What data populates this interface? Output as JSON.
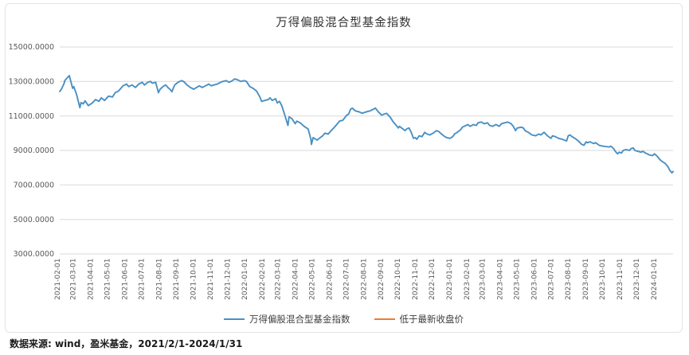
{
  "footer": {
    "text": "数据来源: wind，盈米基金，2021/2/1-2024/1/31"
  },
  "chart_data": {
    "type": "line",
    "title": "万得偏股混合型基金指数",
    "xlabel": "",
    "ylabel": "",
    "ylim": [
      3000,
      15000
    ],
    "yticks": [
      3000,
      5000,
      7000,
      9000,
      11000,
      13000,
      15000
    ],
    "ytick_decimals": 4,
    "grid": "horizontal",
    "legend_position": "bottom",
    "x_range": [
      "2021-02-01",
      "2024-01-31"
    ],
    "xtick_labels": [
      "2021-02-01",
      "2021-03-01",
      "2021-04-01",
      "2021-05-01",
      "2021-06-01",
      "2021-07-01",
      "2021-08-01",
      "2021-09-01",
      "2021-10-01",
      "2021-11-01",
      "2021-12-01",
      "2022-01-01",
      "2022-02-01",
      "2022-03-01",
      "2022-04-01",
      "2022-05-01",
      "2022-06-01",
      "2022-07-01",
      "2022-08-01",
      "2022-09-01",
      "2022-10-01",
      "2022-11-01",
      "2022-12-01",
      "2023-01-01",
      "2023-02-01",
      "2023-03-01",
      "2023-04-01",
      "2023-05-01",
      "2023-06-01",
      "2023-07-01",
      "2023-08-01",
      "2023-09-01",
      "2023-10-01",
      "2023-11-01",
      "2023-12-01",
      "2024-01-01"
    ],
    "series": [
      {
        "name": "万得偏股混合型基金指数",
        "color": "#4a90c4",
        "points": [
          [
            "2021-02-01",
            12420
          ],
          [
            "2021-02-04",
            12550
          ],
          [
            "2021-02-09",
            12900
          ],
          [
            "2021-02-10",
            13050
          ],
          [
            "2021-02-18",
            13340
          ],
          [
            "2021-02-22",
            12850
          ],
          [
            "2021-02-24",
            12600
          ],
          [
            "2021-02-26",
            12700
          ],
          [
            "2021-03-03",
            12250
          ],
          [
            "2021-03-09",
            11480
          ],
          [
            "2021-03-11",
            11780
          ],
          [
            "2021-03-15",
            11700
          ],
          [
            "2021-03-18",
            11880
          ],
          [
            "2021-03-24",
            11600
          ],
          [
            "2021-03-31",
            11750
          ],
          [
            "2021-04-06",
            11950
          ],
          [
            "2021-04-12",
            11850
          ],
          [
            "2021-04-16",
            12050
          ],
          [
            "2021-04-22",
            11900
          ],
          [
            "2021-04-29",
            12150
          ],
          [
            "2021-05-06",
            12100
          ],
          [
            "2021-05-11",
            12350
          ],
          [
            "2021-05-17",
            12450
          ],
          [
            "2021-05-21",
            12600
          ],
          [
            "2021-05-25",
            12750
          ],
          [
            "2021-05-31",
            12850
          ],
          [
            "2021-06-04",
            12700
          ],
          [
            "2021-06-10",
            12800
          ],
          [
            "2021-06-16",
            12650
          ],
          [
            "2021-06-22",
            12850
          ],
          [
            "2021-06-28",
            12950
          ],
          [
            "2021-07-02",
            12800
          ],
          [
            "2021-07-08",
            12950
          ],
          [
            "2021-07-13",
            13000
          ],
          [
            "2021-07-16",
            12900
          ],
          [
            "2021-07-22",
            12950
          ],
          [
            "2021-07-27",
            12350
          ],
          [
            "2021-07-30",
            12550
          ],
          [
            "2021-08-04",
            12700
          ],
          [
            "2021-08-09",
            12800
          ],
          [
            "2021-08-13",
            12650
          ],
          [
            "2021-08-18",
            12500
          ],
          [
            "2021-08-20",
            12400
          ],
          [
            "2021-08-25",
            12800
          ],
          [
            "2021-08-31",
            12950
          ],
          [
            "2021-09-06",
            13050
          ],
          [
            "2021-09-10",
            13000
          ],
          [
            "2021-09-16",
            12800
          ],
          [
            "2021-09-22",
            12650
          ],
          [
            "2021-09-28",
            12550
          ],
          [
            "2021-10-08",
            12750
          ],
          [
            "2021-10-13",
            12650
          ],
          [
            "2021-10-19",
            12750
          ],
          [
            "2021-10-25",
            12850
          ],
          [
            "2021-10-29",
            12750
          ],
          [
            "2021-11-03",
            12800
          ],
          [
            "2021-11-09",
            12850
          ],
          [
            "2021-11-15",
            12950
          ],
          [
            "2021-11-19",
            13000
          ],
          [
            "2021-11-25",
            13050
          ],
          [
            "2021-11-30",
            12950
          ],
          [
            "2021-12-06",
            13050
          ],
          [
            "2021-12-10",
            13150
          ],
          [
            "2021-12-15",
            13100
          ],
          [
            "2021-12-21",
            13000
          ],
          [
            "2021-12-27",
            13050
          ],
          [
            "2021-12-31",
            13000
          ],
          [
            "2022-01-06",
            12700
          ],
          [
            "2022-01-12",
            12600
          ],
          [
            "2022-01-18",
            12450
          ],
          [
            "2022-01-24",
            12100
          ],
          [
            "2022-01-27",
            11850
          ],
          [
            "2022-02-08",
            11950
          ],
          [
            "2022-02-11",
            12050
          ],
          [
            "2022-02-15",
            11900
          ],
          [
            "2022-02-21",
            12000
          ],
          [
            "2022-02-24",
            11750
          ],
          [
            "2022-02-28",
            11850
          ],
          [
            "2022-03-04",
            11600
          ],
          [
            "2022-03-09",
            11100
          ],
          [
            "2022-03-15",
            10450
          ],
          [
            "2022-03-17",
            10950
          ],
          [
            "2022-03-22",
            10850
          ],
          [
            "2022-03-28",
            10550
          ],
          [
            "2022-03-31",
            10700
          ],
          [
            "2022-04-06",
            10600
          ],
          [
            "2022-04-11",
            10450
          ],
          [
            "2022-04-15",
            10350
          ],
          [
            "2022-04-20",
            10250
          ],
          [
            "2022-04-25",
            9650
          ],
          [
            "2022-04-26",
            9350
          ],
          [
            "2022-04-29",
            9750
          ],
          [
            "2022-05-06",
            9600
          ],
          [
            "2022-05-10",
            9700
          ],
          [
            "2022-05-16",
            9850
          ],
          [
            "2022-05-20",
            10000
          ],
          [
            "2022-05-26",
            9950
          ],
          [
            "2022-05-31",
            10150
          ],
          [
            "2022-06-06",
            10350
          ],
          [
            "2022-06-10",
            10500
          ],
          [
            "2022-06-15",
            10700
          ],
          [
            "2022-06-21",
            10750
          ],
          [
            "2022-06-28",
            11050
          ],
          [
            "2022-07-01",
            11100
          ],
          [
            "2022-07-05",
            11400
          ],
          [
            "2022-07-08",
            11450
          ],
          [
            "2022-07-13",
            11300
          ],
          [
            "2022-07-19",
            11250
          ],
          [
            "2022-07-26",
            11150
          ],
          [
            "2022-07-29",
            11200
          ],
          [
            "2022-08-03",
            11250
          ],
          [
            "2022-08-09",
            11300
          ],
          [
            "2022-08-15",
            11400
          ],
          [
            "2022-08-18",
            11450
          ],
          [
            "2022-08-23",
            11250
          ],
          [
            "2022-08-29",
            11050
          ],
          [
            "2022-09-02",
            11100
          ],
          [
            "2022-09-07",
            11150
          ],
          [
            "2022-09-13",
            10950
          ],
          [
            "2022-09-19",
            10650
          ],
          [
            "2022-09-23",
            10500
          ],
          [
            "2022-09-28",
            10300
          ],
          [
            "2022-09-30",
            10400
          ],
          [
            "2022-10-10",
            10150
          ],
          [
            "2022-10-13",
            10250
          ],
          [
            "2022-10-17",
            10300
          ],
          [
            "2022-10-21",
            10050
          ],
          [
            "2022-10-25",
            9700
          ],
          [
            "2022-10-28",
            9750
          ],
          [
            "2022-10-31",
            9650
          ],
          [
            "2022-11-04",
            9850
          ],
          [
            "2022-11-09",
            9800
          ],
          [
            "2022-11-14",
            10050
          ],
          [
            "2022-11-18",
            9950
          ],
          [
            "2022-11-23",
            9900
          ],
          [
            "2022-11-29",
            10000
          ],
          [
            "2022-12-05",
            10150
          ],
          [
            "2022-12-09",
            10100
          ],
          [
            "2022-12-14",
            9950
          ],
          [
            "2022-12-20",
            9800
          ],
          [
            "2022-12-23",
            9750
          ],
          [
            "2022-12-29",
            9700
          ],
          [
            "2023-01-03",
            9800
          ],
          [
            "2023-01-06",
            9950
          ],
          [
            "2023-01-11",
            10050
          ],
          [
            "2023-01-17",
            10200
          ],
          [
            "2023-01-20",
            10350
          ],
          [
            "2023-01-30",
            10500
          ],
          [
            "2023-02-03",
            10400
          ],
          [
            "2023-02-09",
            10500
          ],
          [
            "2023-02-14",
            10450
          ],
          [
            "2023-02-17",
            10600
          ],
          [
            "2023-02-23",
            10650
          ],
          [
            "2023-02-28",
            10550
          ],
          [
            "2023-03-06",
            10600
          ],
          [
            "2023-03-10",
            10450
          ],
          [
            "2023-03-15",
            10400
          ],
          [
            "2023-03-21",
            10500
          ],
          [
            "2023-03-27",
            10400
          ],
          [
            "2023-03-31",
            10550
          ],
          [
            "2023-04-06",
            10600
          ],
          [
            "2023-04-11",
            10650
          ],
          [
            "2023-04-17",
            10550
          ],
          [
            "2023-04-21",
            10400
          ],
          [
            "2023-04-25",
            10150
          ],
          [
            "2023-04-28",
            10300
          ],
          [
            "2023-05-05",
            10350
          ],
          [
            "2023-05-09",
            10300
          ],
          [
            "2023-05-12",
            10150
          ],
          [
            "2023-05-18",
            10050
          ],
          [
            "2023-05-24",
            9900
          ],
          [
            "2023-05-31",
            9850
          ],
          [
            "2023-06-05",
            9950
          ],
          [
            "2023-06-09",
            9900
          ],
          [
            "2023-06-15",
            10050
          ],
          [
            "2023-06-21",
            9850
          ],
          [
            "2023-06-27",
            9700
          ],
          [
            "2023-06-30",
            9850
          ],
          [
            "2023-07-05",
            9800
          ],
          [
            "2023-07-11",
            9700
          ],
          [
            "2023-07-17",
            9650
          ],
          [
            "2023-07-21",
            9600
          ],
          [
            "2023-07-25",
            9550
          ],
          [
            "2023-07-28",
            9850
          ],
          [
            "2023-07-31",
            9900
          ],
          [
            "2023-08-04",
            9800
          ],
          [
            "2023-08-09",
            9700
          ],
          [
            "2023-08-15",
            9550
          ],
          [
            "2023-08-21",
            9350
          ],
          [
            "2023-08-25",
            9300
          ],
          [
            "2023-08-29",
            9500
          ],
          [
            "2023-08-31",
            9450
          ],
          [
            "2023-09-05",
            9500
          ],
          [
            "2023-09-11",
            9400
          ],
          [
            "2023-09-15",
            9450
          ],
          [
            "2023-09-21",
            9300
          ],
          [
            "2023-09-27",
            9250
          ],
          [
            "2023-10-09",
            9200
          ],
          [
            "2023-10-12",
            9250
          ],
          [
            "2023-10-17",
            9100
          ],
          [
            "2023-10-20",
            8950
          ],
          [
            "2023-10-24",
            8800
          ],
          [
            "2023-10-27",
            8900
          ],
          [
            "2023-10-31",
            8850
          ],
          [
            "2023-11-03",
            9000
          ],
          [
            "2023-11-08",
            9050
          ],
          [
            "2023-11-14",
            9000
          ],
          [
            "2023-11-17",
            9100
          ],
          [
            "2023-11-21",
            9150
          ],
          [
            "2023-11-24",
            9000
          ],
          [
            "2023-11-29",
            8950
          ],
          [
            "2023-12-05",
            8900
          ],
          [
            "2023-12-08",
            8950
          ],
          [
            "2023-12-13",
            8850
          ],
          [
            "2023-12-19",
            8750
          ],
          [
            "2023-12-25",
            8700
          ],
          [
            "2023-12-29",
            8800
          ],
          [
            "2024-01-03",
            8650
          ],
          [
            "2024-01-08",
            8450
          ],
          [
            "2024-01-12",
            8350
          ],
          [
            "2024-01-17",
            8250
          ],
          [
            "2024-01-22",
            8050
          ],
          [
            "2024-01-25",
            7850
          ],
          [
            "2024-01-29",
            7700
          ],
          [
            "2024-01-31",
            7780
          ]
        ]
      },
      {
        "name": "低于最新收盘价",
        "color": "#ED7D31",
        "points": []
      }
    ]
  }
}
